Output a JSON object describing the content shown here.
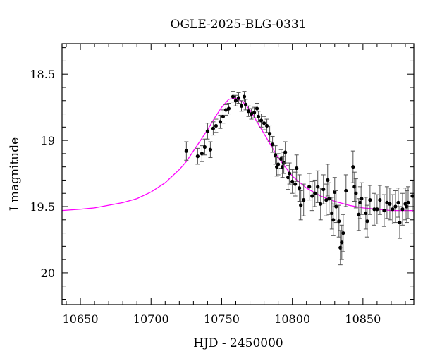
{
  "chart_data": {
    "type": "scatter",
    "title": "OGLE-2025-BLG-0331",
    "xlabel": "HJD - 2450000",
    "ylabel": "I magnitude",
    "xlim": [
      10637,
      10886
    ],
    "ylim": [
      20.24,
      18.27
    ],
    "y_inverted": true,
    "xticks": [
      10650,
      10700,
      10750,
      10800,
      10850
    ],
    "yticks": [
      18.5,
      19,
      19.5,
      20
    ],
    "ytick_labels": [
      "18.5",
      "19",
      "19.5",
      "20"
    ],
    "grid": false,
    "points_color": "#000000",
    "errorbar_color": "#555555",
    "model_color": "#ff00ff",
    "series": [
      {
        "kind": "points",
        "points": [
          [
            10725,
            19.08,
            0.07
          ],
          [
            10733,
            19.12,
            0.06
          ],
          [
            10736,
            19.1,
            0.06
          ],
          [
            10738,
            19.05,
            0.06
          ],
          [
            10740,
            18.93,
            0.06
          ],
          [
            10742,
            19.07,
            0.06
          ],
          [
            10744,
            18.91,
            0.05
          ],
          [
            10746,
            18.89,
            0.05
          ],
          [
            10749,
            18.86,
            0.05
          ],
          [
            10751,
            18.82,
            0.05
          ],
          [
            10753,
            18.77,
            0.04
          ],
          [
            10755,
            18.76,
            0.04
          ],
          [
            10758,
            18.67,
            0.04
          ],
          [
            10760,
            18.7,
            0.04
          ],
          [
            10762,
            18.68,
            0.04
          ],
          [
            10764,
            18.74,
            0.04
          ],
          [
            10766,
            18.67,
            0.04
          ],
          [
            10767,
            18.73,
            0.04
          ],
          [
            10769,
            18.78,
            0.04
          ],
          [
            10771,
            18.8,
            0.04
          ],
          [
            10773,
            18.79,
            0.04
          ],
          [
            10775,
            18.76,
            0.04
          ],
          [
            10776,
            18.82,
            0.04
          ],
          [
            10778,
            18.85,
            0.05
          ],
          [
            10780,
            18.87,
            0.05
          ],
          [
            10782,
            18.89,
            0.05
          ],
          [
            10784,
            18.95,
            0.06
          ],
          [
            10786,
            19.03,
            0.06
          ],
          [
            10788,
            19.11,
            0.07
          ],
          [
            10789,
            19.2,
            0.07
          ],
          [
            10790,
            19.18,
            0.08
          ],
          [
            10792,
            19.14,
            0.07
          ],
          [
            10793,
            19.2,
            0.08
          ],
          [
            10794,
            19.17,
            0.08
          ],
          [
            10795,
            19.09,
            0.08
          ],
          [
            10797,
            19.28,
            0.09
          ],
          [
            10798,
            19.25,
            0.08
          ],
          [
            10800,
            19.31,
            0.09
          ],
          [
            10802,
            19.33,
            0.09
          ],
          [
            10803,
            19.21,
            0.1
          ],
          [
            10805,
            19.36,
            0.1
          ],
          [
            10806,
            19.49,
            0.11
          ],
          [
            10808,
            19.45,
            0.12
          ],
          [
            10812,
            19.35,
            0.1
          ],
          [
            10814,
            19.42,
            0.11
          ],
          [
            10816,
            19.4,
            0.1
          ],
          [
            10818,
            19.35,
            0.12
          ],
          [
            10820,
            19.48,
            0.12
          ],
          [
            10822,
            19.37,
            0.11
          ],
          [
            10824,
            19.45,
            0.12
          ],
          [
            10825,
            19.3,
            0.12
          ],
          [
            10826,
            19.44,
            0.12
          ],
          [
            10828,
            19.55,
            0.12
          ],
          [
            10829,
            19.6,
            0.12
          ],
          [
            10830,
            19.39,
            0.11
          ],
          [
            10831,
            19.5,
            0.12
          ],
          [
            10833,
            19.61,
            0.12
          ],
          [
            10834,
            19.81,
            0.13
          ],
          [
            10835,
            19.77,
            0.13
          ],
          [
            10836,
            19.7,
            0.14
          ],
          [
            10838,
            19.38,
            0.12
          ],
          [
            10843,
            19.2,
            0.12
          ],
          [
            10844,
            19.35,
            0.11
          ],
          [
            10845,
            19.4,
            0.11
          ],
          [
            10847,
            19.56,
            0.12
          ],
          [
            10848,
            19.47,
            0.12
          ],
          [
            10849,
            19.44,
            0.12
          ],
          [
            10852,
            19.55,
            0.12
          ],
          [
            10853,
            19.61,
            0.12
          ],
          [
            10855,
            19.45,
            0.11
          ],
          [
            10858,
            19.52,
            0.12
          ],
          [
            10860,
            19.52,
            0.11
          ],
          [
            10862,
            19.45,
            0.11
          ],
          [
            10865,
            19.53,
            0.12
          ],
          [
            10867,
            19.47,
            0.12
          ],
          [
            10869,
            19.48,
            0.12
          ],
          [
            10871,
            19.52,
            0.11
          ],
          [
            10873,
            19.5,
            0.12
          ],
          [
            10875,
            19.47,
            0.11
          ],
          [
            10876,
            19.62,
            0.12
          ],
          [
            10878,
            19.52,
            0.12
          ],
          [
            10880,
            19.48,
            0.12
          ],
          [
            10881,
            19.5,
            0.12
          ],
          [
            10882,
            19.47,
            0.12
          ],
          [
            10885,
            19.42,
            0.12
          ]
        ]
      },
      {
        "kind": "model",
        "x": [
          10637,
          10650,
          10660,
          10670,
          10680,
          10690,
          10700,
          10710,
          10720,
          10725,
          10730,
          10735,
          10740,
          10745,
          10750,
          10755,
          10760,
          10765,
          10770,
          10775,
          10780,
          10785,
          10790,
          10795,
          10800,
          10810,
          10820,
          10830,
          10840,
          10850,
          10860,
          10870,
          10880,
          10886
        ],
        "y": [
          19.53,
          19.52,
          19.51,
          19.49,
          19.47,
          19.44,
          19.39,
          19.32,
          19.22,
          19.16,
          19.08,
          19.0,
          18.92,
          18.83,
          18.75,
          18.69,
          18.68,
          18.71,
          18.77,
          18.86,
          18.95,
          19.04,
          19.13,
          19.2,
          19.27,
          19.36,
          19.42,
          19.46,
          19.49,
          19.51,
          19.52,
          19.53,
          19.53,
          19.53
        ]
      }
    ]
  }
}
